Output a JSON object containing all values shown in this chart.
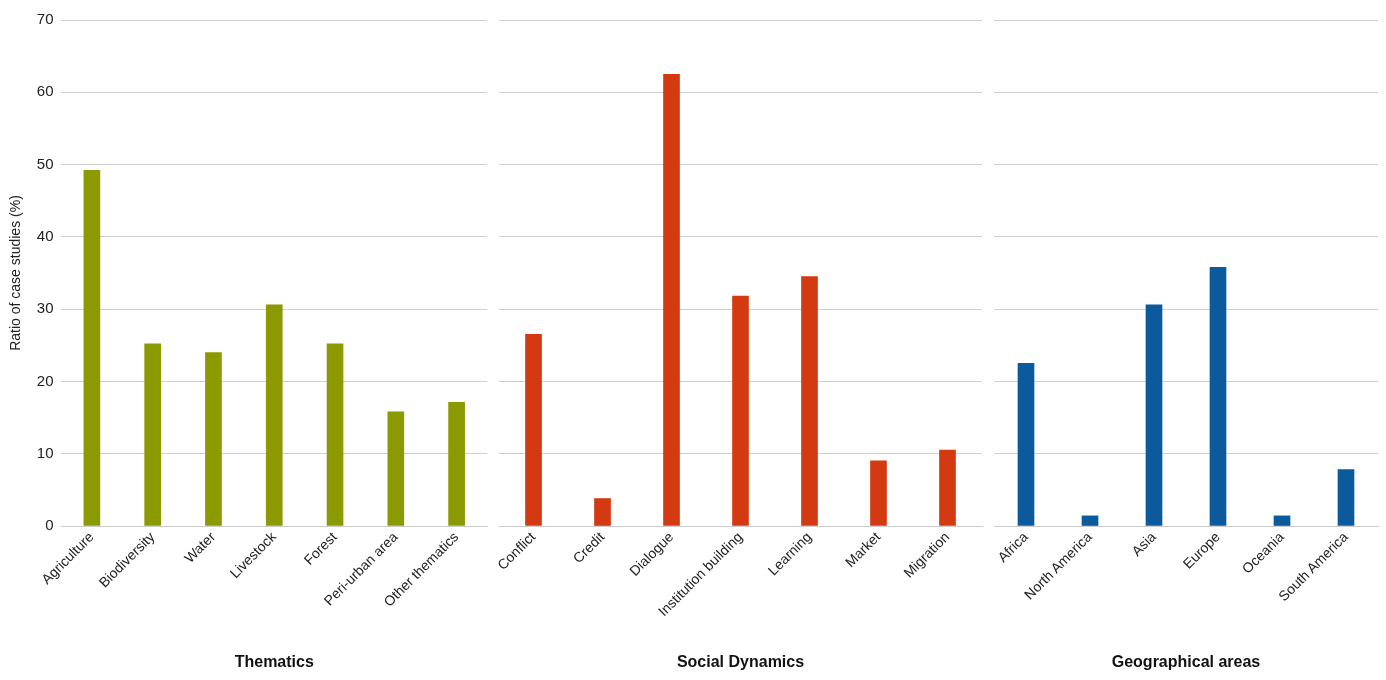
{
  "chart_data": [
    {
      "type": "bar",
      "xlabel": "Thematics",
      "ylabel": "Ratio of case studies (%)",
      "categories": [
        "Agriculture",
        "Biodiversity",
        "Water",
        "Livestock",
        "Forest",
        "Peri-urban area",
        "Other thematics"
      ],
      "values": [
        49.2,
        25.2,
        24.0,
        30.6,
        25.2,
        15.8,
        17.1
      ],
      "color": "#8a9a00",
      "ylim": [
        0,
        70
      ],
      "yticks": [
        0,
        10,
        20,
        30,
        40,
        50,
        60,
        70
      ],
      "grid": "y"
    },
    {
      "type": "bar",
      "xlabel": "Social Dynamics",
      "categories": [
        "Conflict",
        "Credit",
        "Dialogue",
        "Institution building",
        "Learning",
        "Market",
        "Migration"
      ],
      "values": [
        26.5,
        3.8,
        62.5,
        31.8,
        34.5,
        9.0,
        10.5
      ],
      "color": "#d43a12",
      "ylim": [
        0,
        70
      ],
      "yticks": [
        0,
        10,
        20,
        30,
        40,
        50,
        60,
        70
      ],
      "grid": "y",
      "tick_labels": "x"
    },
    {
      "type": "bar",
      "xlabel": "Geographical areas",
      "categories": [
        "Africa",
        "North America",
        "Asia",
        "Europe",
        "Oceania",
        "South America"
      ],
      "values": [
        22.5,
        1.4,
        30.6,
        35.8,
        1.4,
        7.8
      ],
      "color": "#0a5a9c",
      "ylim": [
        0,
        70
      ],
      "yticks": [
        0,
        10,
        20,
        30,
        40,
        50,
        60,
        70
      ],
      "grid": "y",
      "tick_labels": "x"
    }
  ]
}
